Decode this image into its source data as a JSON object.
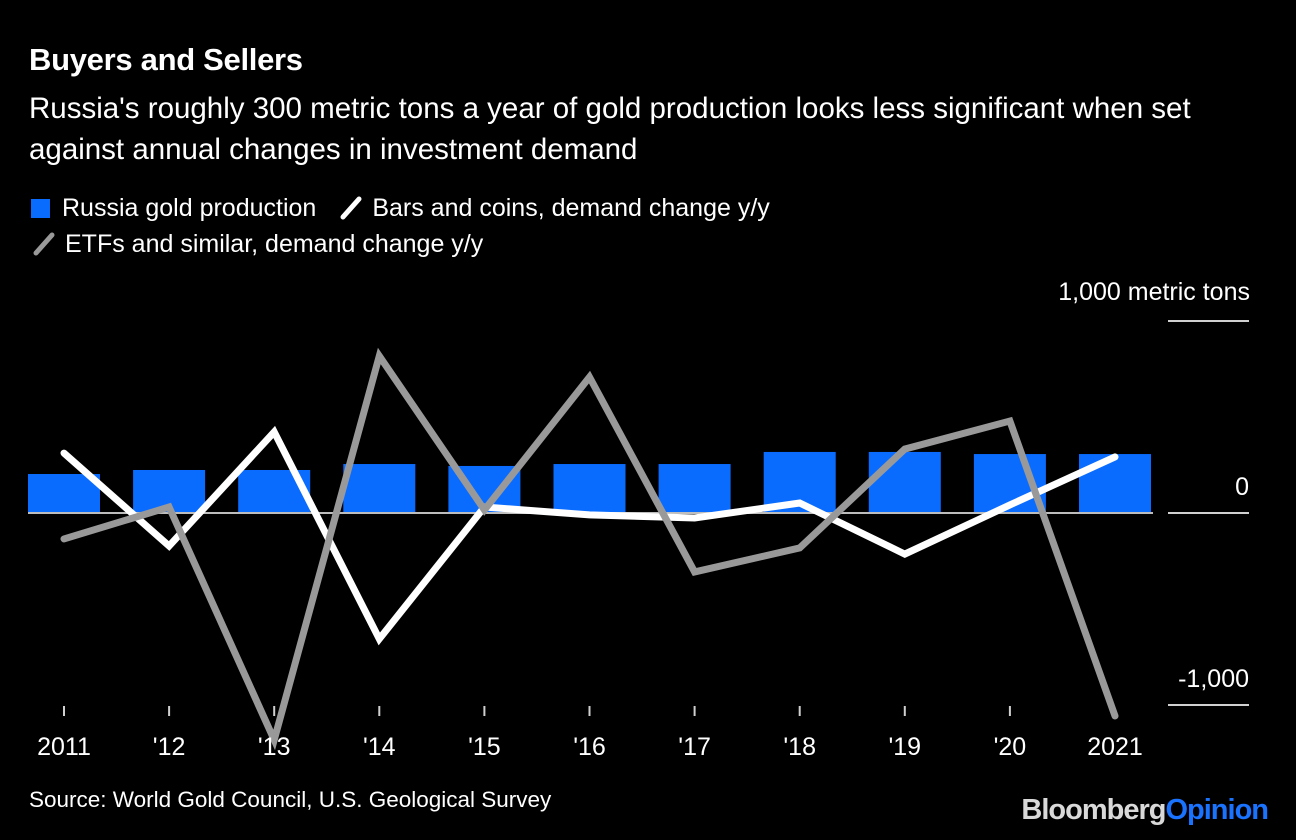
{
  "header": {
    "title": "Buyers and Sellers",
    "subtitle": "Russia's roughly 300 metric tons a year of gold production looks less significant when set against annual changes in investment demand"
  },
  "legend": {
    "items": [
      {
        "label": "Russia gold production",
        "kind": "bar",
        "color": "#0a6cff"
      },
      {
        "label": "Bars and coins, demand change y/y",
        "kind": "line",
        "color": "#ffffff"
      },
      {
        "label": "ETFs and similar, demand change y/y",
        "kind": "line",
        "color": "#999999"
      }
    ]
  },
  "footer": {
    "source": "Source: World Gold Council, U.S. Geological Survey",
    "brand_part1": "Bloomberg",
    "brand_part2": "Opinion"
  },
  "chart_data": {
    "type": "bar+line",
    "title": "Buyers and Sellers",
    "unit_label": "1,000 metric tons",
    "categories": [
      "2011",
      "'12",
      "'13",
      "'14",
      "'15",
      "'16",
      "'17",
      "'18",
      "'19",
      "'20",
      "2021"
    ],
    "ylim": [
      -1000,
      1000
    ],
    "yticks": [
      {
        "value": 1000,
        "label": ""
      },
      {
        "value": 0,
        "label": "0"
      },
      {
        "value": -1000,
        "label": "-1,000"
      }
    ],
    "series": [
      {
        "name": "Russia gold production",
        "type": "bar",
        "color": "#0a6cff",
        "values": [
          203,
          224,
          224,
          255,
          245,
          255,
          255,
          318,
          318,
          307,
          307
        ]
      },
      {
        "name": "Bars and coins, demand change y/y",
        "type": "line",
        "color": "#ffffff",
        "values": [
          312,
          -172,
          422,
          -656,
          31,
          -10,
          -26,
          52,
          -214,
          42,
          292
        ]
      },
      {
        "name": "ETFs and similar, demand change y/y",
        "type": "line",
        "color": "#999999",
        "values": [
          -135,
          31,
          -1182,
          818,
          16,
          708,
          -307,
          -182,
          333,
          479,
          -1057
        ]
      }
    ],
    "grid": true,
    "legend_position": "top-left"
  }
}
